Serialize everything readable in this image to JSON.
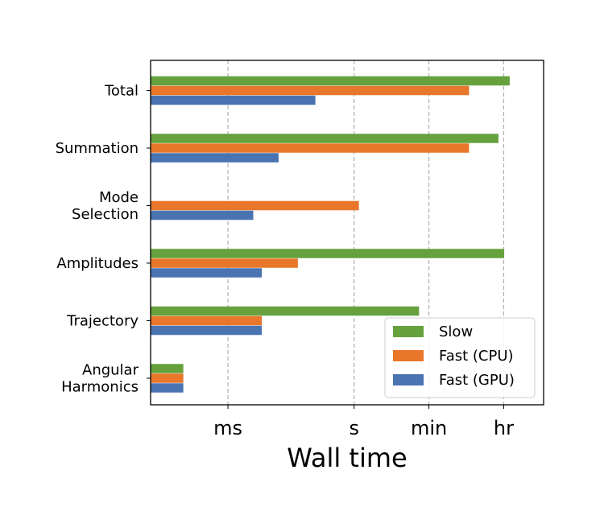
{
  "chart_data": {
    "type": "bar",
    "orientation": "horizontal",
    "title": "",
    "xlabel": "Wall time",
    "ylabel": "",
    "x_scale": "log",
    "xlim_seconds": [
      1.45e-05,
      32000
    ],
    "grid": "vertical dashed lines at tick positions",
    "legend_position": "bottom-right",
    "categories": [
      [
        "Angular",
        "Harmonics"
      ],
      [
        "Trajectory"
      ],
      [
        "Amplitudes"
      ],
      [
        "Mode",
        "Selection"
      ],
      [
        "Summation"
      ],
      [
        "Total"
      ]
    ],
    "x_ticks": [
      {
        "label": "ms",
        "seconds": 0.001
      },
      {
        "label": "s",
        "seconds": 1
      },
      {
        "label": "min",
        "seconds": 60
      },
      {
        "label": "hr",
        "seconds": 3600
      }
    ],
    "series": [
      {
        "name": "Slow",
        "color": "#67a13d",
        "values_seconds": [
          8.7e-05,
          35,
          3700,
          null,
          2700,
          5000
        ]
      },
      {
        "name": "Fast (CPU)",
        "color": "#e8772b",
        "values_seconds": [
          8.7e-05,
          0.0064,
          0.046,
          1.3,
          540,
          540
        ]
      },
      {
        "name": "Fast (GPU)",
        "color": "#4a73b1",
        "values_seconds": [
          8.7e-05,
          0.0064,
          0.0064,
          0.004,
          0.016,
          0.12
        ]
      }
    ]
  }
}
